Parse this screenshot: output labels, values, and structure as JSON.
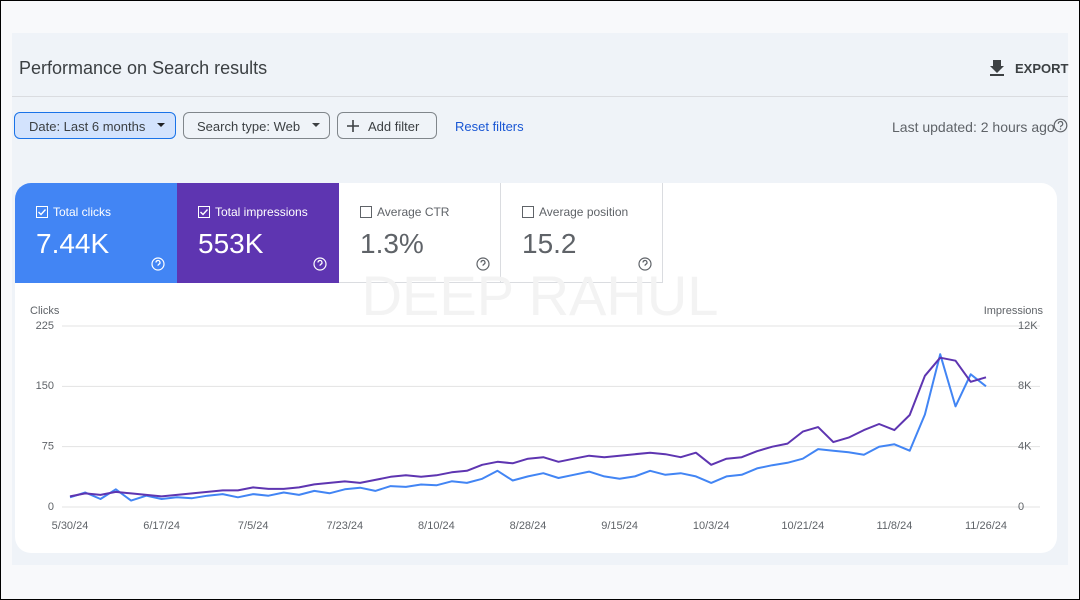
{
  "header": {
    "title": "Performance on Search results",
    "export": "EXPORT"
  },
  "filters": {
    "date": "Date: Last 6 months",
    "search_type": "Search type: Web",
    "add_filter": "Add filter",
    "reset": "Reset filters",
    "last_updated": "Last updated: 2 hours ago"
  },
  "metrics": [
    {
      "label": "Total clicks",
      "value": "7.44K"
    },
    {
      "label": "Total impressions",
      "value": "553K"
    },
    {
      "label": "Average CTR",
      "value": "1.3%"
    },
    {
      "label": "Average position",
      "value": "15.2"
    }
  ],
  "watermark": "DEEP RAHUL",
  "chart_data": {
    "type": "line",
    "x": [
      "5/30/24",
      null,
      null,
      null,
      null,
      null,
      "6/17/24",
      null,
      null,
      null,
      null,
      null,
      "7/5/24",
      null,
      null,
      null,
      null,
      null,
      "7/23/24",
      null,
      null,
      null,
      null,
      null,
      "8/10/24",
      null,
      null,
      null,
      null,
      null,
      "8/28/24",
      null,
      null,
      null,
      null,
      null,
      "9/15/24",
      null,
      null,
      null,
      null,
      null,
      "10/3/24",
      null,
      null,
      null,
      null,
      null,
      "10/21/24",
      null,
      null,
      null,
      null,
      null,
      "11/8/24",
      null,
      null,
      null,
      null,
      null,
      "11/26/24"
    ],
    "series": [
      {
        "name": "Clicks",
        "color": "#4285f4",
        "values": [
          12,
          18,
          10,
          22,
          8,
          14,
          10,
          12,
          11,
          14,
          16,
          12,
          16,
          14,
          18,
          15,
          20,
          17,
          22,
          24,
          20,
          26,
          25,
          28,
          27,
          32,
          30,
          35,
          45,
          33,
          38,
          42,
          36,
          40,
          44,
          38,
          35,
          38,
          45,
          40,
          42,
          38,
          30,
          38,
          40,
          48,
          52,
          55,
          60,
          72,
          70,
          68,
          65,
          75,
          78,
          70,
          115,
          190,
          125,
          165,
          150
        ]
      },
      {
        "name": "Impressions",
        "color": "#5e35b1",
        "axis": "y2",
        "values": [
          700,
          900,
          800,
          1000,
          900,
          800,
          700,
          800,
          900,
          1000,
          1100,
          1100,
          1300,
          1200,
          1200,
          1300,
          1500,
          1600,
          1700,
          1600,
          1800,
          2000,
          2100,
          2000,
          2100,
          2300,
          2400,
          2800,
          3000,
          2900,
          3200,
          3300,
          3000,
          3200,
          3400,
          3300,
          3400,
          3500,
          3600,
          3500,
          3300,
          3600,
          2800,
          3200,
          3300,
          3700,
          4000,
          4200,
          5000,
          5300,
          4300,
          4600,
          5100,
          5500,
          5100,
          6100,
          8700,
          9900,
          9700,
          8300,
          8600
        ]
      }
    ],
    "ylim": [
      0,
      225
    ],
    "yticks": [
      0,
      75,
      150,
      225
    ],
    "y2lim": [
      0,
      12000
    ],
    "y2ticks": [
      0,
      {
        "value": 4000,
        "label": "4K"
      },
      {
        "value": 8000,
        "label": "8K"
      },
      {
        "value": 12000,
        "label": "12K"
      }
    ],
    "grid": true
  }
}
